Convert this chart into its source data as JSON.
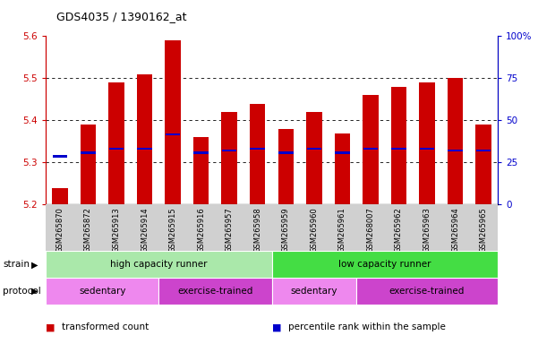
{
  "title": "GDS4035 / 1390162_at",
  "samples": [
    "GSM265870",
    "GSM265872",
    "GSM265913",
    "GSM265914",
    "GSM265915",
    "GSM265916",
    "GSM265957",
    "GSM265958",
    "GSM265959",
    "GSM265960",
    "GSM265961",
    "GSM268007",
    "GSM265962",
    "GSM265963",
    "GSM265964",
    "GSM265965"
  ],
  "bar_values": [
    5.24,
    5.39,
    5.49,
    5.51,
    5.59,
    5.36,
    5.42,
    5.44,
    5.38,
    5.42,
    5.37,
    5.46,
    5.48,
    5.49,
    5.5,
    5.39
  ],
  "blue_values": [
    5.315,
    5.323,
    5.333,
    5.333,
    5.367,
    5.323,
    5.328,
    5.333,
    5.323,
    5.333,
    5.323,
    5.333,
    5.333,
    5.333,
    5.328,
    5.328
  ],
  "ymin": 5.2,
  "ymax": 5.6,
  "yticks": [
    5.2,
    5.3,
    5.4,
    5.5,
    5.6
  ],
  "right_yticks": [
    0,
    25,
    50,
    75,
    100
  ],
  "bar_color": "#cc0000",
  "blue_color": "#0000cc",
  "sample_bg": "#d0d0d0",
  "plot_bg": "#ffffff",
  "strain_groups": [
    {
      "label": "high capacity runner",
      "start": 0,
      "end": 8,
      "color": "#aae8aa"
    },
    {
      "label": "low capacity runner",
      "start": 8,
      "end": 16,
      "color": "#44dd44"
    }
  ],
  "protocol_groups": [
    {
      "label": "sedentary",
      "start": 0,
      "end": 4,
      "color": "#ee88ee"
    },
    {
      "label": "exercise-trained",
      "start": 4,
      "end": 8,
      "color": "#cc44cc"
    },
    {
      "label": "sedentary",
      "start": 8,
      "end": 11,
      "color": "#ee88ee"
    },
    {
      "label": "exercise-trained",
      "start": 11,
      "end": 16,
      "color": "#cc44cc"
    }
  ],
  "legend_items": [
    {
      "color": "#cc0000",
      "label": "transformed count"
    },
    {
      "color": "#0000cc",
      "label": "percentile rank within the sample"
    }
  ]
}
